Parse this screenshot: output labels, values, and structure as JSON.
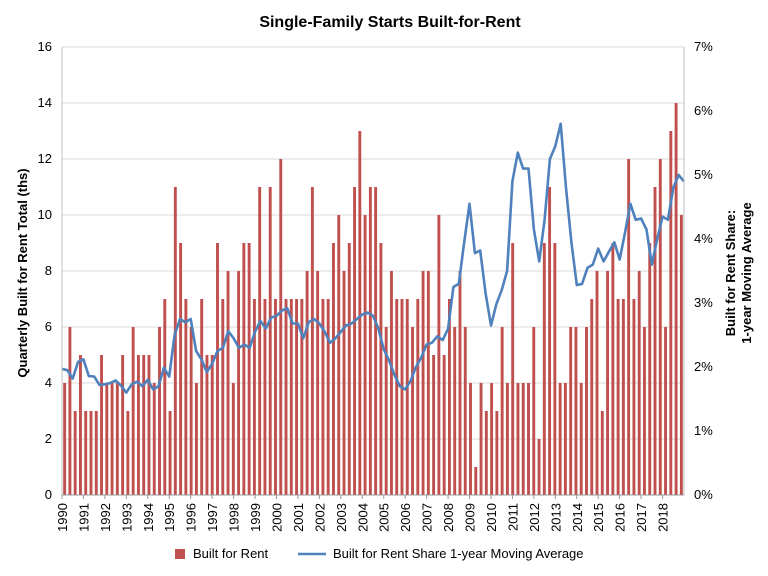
{
  "chart_data": {
    "type": "bar",
    "title": "Single-Family Starts Built-for-Rent",
    "ylabel_left": "Quarterly Built for Rent Total (ths)",
    "ylabel_right_line1": "Built for Rent Share:",
    "ylabel_right_line2": "1-year Moving Average",
    "ylim_left": [
      0,
      16
    ],
    "ylim_right": [
      0,
      7
    ],
    "left_ticks": [
      "0",
      "2",
      "4",
      "6",
      "8",
      "10",
      "12",
      "14",
      "16"
    ],
    "right_ticks": [
      "0%",
      "1%",
      "2%",
      "3%",
      "4%",
      "5%",
      "6%",
      "7%"
    ],
    "years": [
      "1990",
      "1991",
      "1992",
      "1993",
      "1994",
      "1995",
      "1996",
      "1997",
      "1998",
      "1999",
      "2000",
      "2001",
      "2002",
      "2003",
      "2004",
      "2005",
      "2006",
      "2007",
      "2008",
      "2009",
      "2010",
      "2011",
      "2012",
      "2013",
      "2014",
      "2015",
      "2016",
      "2017",
      "2018"
    ],
    "x_start_year": 1990,
    "x_end": 2019,
    "grid": true,
    "legend_position": "bottom",
    "series": [
      {
        "name": "Built for Rent",
        "type": "bar",
        "axis": "left",
        "color": "#C0504D",
        "values": [
          4,
          6,
          3,
          5,
          3,
          3,
          3,
          5,
          4,
          4,
          4,
          5,
          3,
          6,
          5,
          5,
          5,
          4,
          6,
          7,
          3,
          11,
          9,
          7,
          6,
          4,
          7,
          5,
          5,
          9,
          7,
          8,
          4,
          8,
          9,
          9,
          7,
          11,
          7,
          11,
          7,
          12,
          7,
          7,
          7,
          7,
          8,
          11,
          8,
          7,
          7,
          9,
          10,
          8,
          9,
          11,
          13,
          10,
          11,
          11,
          9,
          6,
          8,
          7,
          7,
          7,
          6,
          7,
          8,
          8,
          5,
          10,
          5,
          7,
          6,
          8,
          6,
          4,
          1,
          4,
          3,
          4,
          3,
          6,
          4,
          9,
          4,
          4,
          4,
          6,
          2,
          9,
          11,
          9,
          4,
          4,
          6,
          6,
          4,
          6,
          7,
          8,
          3,
          8,
          9,
          7,
          7,
          12,
          7,
          8,
          6,
          9,
          11,
          12,
          6,
          13,
          14,
          10
        ]
      },
      {
        "name": "Built for Rent Share 1-year Moving Average",
        "type": "line",
        "axis": "right",
        "color": "#4F81BD",
        "points": [
          [
            1990.0,
            1.97
          ],
          [
            1990.25,
            1.95
          ],
          [
            1990.5,
            1.82
          ],
          [
            1990.75,
            2.08
          ],
          [
            1991.0,
            2.12
          ],
          [
            1991.25,
            1.86
          ],
          [
            1991.5,
            1.85
          ],
          [
            1991.75,
            1.72
          ],
          [
            1992.0,
            1.73
          ],
          [
            1992.25,
            1.75
          ],
          [
            1992.5,
            1.79
          ],
          [
            1992.75,
            1.71
          ],
          [
            1993.0,
            1.6
          ],
          [
            1993.25,
            1.73
          ],
          [
            1993.5,
            1.77
          ],
          [
            1993.75,
            1.7
          ],
          [
            1994.0,
            1.8
          ],
          [
            1994.25,
            1.65
          ],
          [
            1994.5,
            1.7
          ],
          [
            1994.75,
            1.99
          ],
          [
            1995.0,
            1.85
          ],
          [
            1995.25,
            2.5
          ],
          [
            1995.5,
            2.75
          ],
          [
            1995.75,
            2.7
          ],
          [
            1996.0,
            2.75
          ],
          [
            1996.25,
            2.25
          ],
          [
            1996.5,
            2.12
          ],
          [
            1996.75,
            1.92
          ],
          [
            1997.0,
            2.05
          ],
          [
            1997.25,
            2.25
          ],
          [
            1997.5,
            2.3
          ],
          [
            1997.75,
            2.56
          ],
          [
            1998.0,
            2.45
          ],
          [
            1998.25,
            2.3
          ],
          [
            1998.5,
            2.35
          ],
          [
            1998.75,
            2.3
          ],
          [
            1999.0,
            2.55
          ],
          [
            1999.25,
            2.72
          ],
          [
            1999.5,
            2.6
          ],
          [
            1999.75,
            2.77
          ],
          [
            2000.0,
            2.8
          ],
          [
            2000.25,
            2.88
          ],
          [
            2000.5,
            2.92
          ],
          [
            2000.75,
            2.68
          ],
          [
            2001.0,
            2.68
          ],
          [
            2001.25,
            2.45
          ],
          [
            2001.5,
            2.7
          ],
          [
            2001.75,
            2.75
          ],
          [
            2002.0,
            2.68
          ],
          [
            2002.25,
            2.55
          ],
          [
            2002.5,
            2.38
          ],
          [
            2002.75,
            2.45
          ],
          [
            2003.0,
            2.55
          ],
          [
            2003.25,
            2.65
          ],
          [
            2003.5,
            2.68
          ],
          [
            2003.75,
            2.75
          ],
          [
            2004.0,
            2.82
          ],
          [
            2004.25,
            2.85
          ],
          [
            2004.5,
            2.8
          ],
          [
            2004.75,
            2.6
          ],
          [
            2005.0,
            2.28
          ],
          [
            2005.25,
            2.1
          ],
          [
            2005.5,
            1.88
          ],
          [
            2005.75,
            1.7
          ],
          [
            2006.0,
            1.65
          ],
          [
            2006.25,
            1.78
          ],
          [
            2006.5,
            2.0
          ],
          [
            2006.75,
            2.15
          ],
          [
            2007.0,
            2.35
          ],
          [
            2007.25,
            2.38
          ],
          [
            2007.5,
            2.48
          ],
          [
            2007.75,
            2.42
          ],
          [
            2008.0,
            2.6
          ],
          [
            2008.25,
            3.25
          ],
          [
            2008.5,
            3.3
          ],
          [
            2008.75,
            3.95
          ],
          [
            2009.0,
            4.55
          ],
          [
            2009.25,
            3.78
          ],
          [
            2009.5,
            3.82
          ],
          [
            2009.75,
            3.15
          ],
          [
            2010.0,
            2.65
          ],
          [
            2010.25,
            2.98
          ],
          [
            2010.5,
            3.2
          ],
          [
            2010.75,
            3.5
          ],
          [
            2011.0,
            4.9
          ],
          [
            2011.25,
            5.35
          ],
          [
            2011.5,
            5.1
          ],
          [
            2011.75,
            5.1
          ],
          [
            2012.0,
            4.15
          ],
          [
            2012.25,
            3.65
          ],
          [
            2012.5,
            4.3
          ],
          [
            2012.75,
            5.25
          ],
          [
            2013.0,
            5.45
          ],
          [
            2013.25,
            5.8
          ],
          [
            2013.5,
            4.8
          ],
          [
            2013.75,
            3.95
          ],
          [
            2014.0,
            3.28
          ],
          [
            2014.25,
            3.3
          ],
          [
            2014.5,
            3.55
          ],
          [
            2014.75,
            3.6
          ],
          [
            2015.0,
            3.85
          ],
          [
            2015.25,
            3.65
          ],
          [
            2015.5,
            3.8
          ],
          [
            2015.75,
            3.95
          ],
          [
            2016.0,
            3.68
          ],
          [
            2016.25,
            4.1
          ],
          [
            2016.5,
            4.55
          ],
          [
            2016.75,
            4.3
          ],
          [
            2017.0,
            4.32
          ],
          [
            2017.25,
            4.15
          ],
          [
            2017.5,
            3.6
          ],
          [
            2017.75,
            4.0
          ],
          [
            2018.0,
            4.35
          ],
          [
            2018.25,
            4.3
          ],
          [
            2018.5,
            4.8
          ],
          [
            2018.75,
            5.0
          ],
          [
            2019.0,
            4.9
          ]
        ]
      }
    ]
  }
}
